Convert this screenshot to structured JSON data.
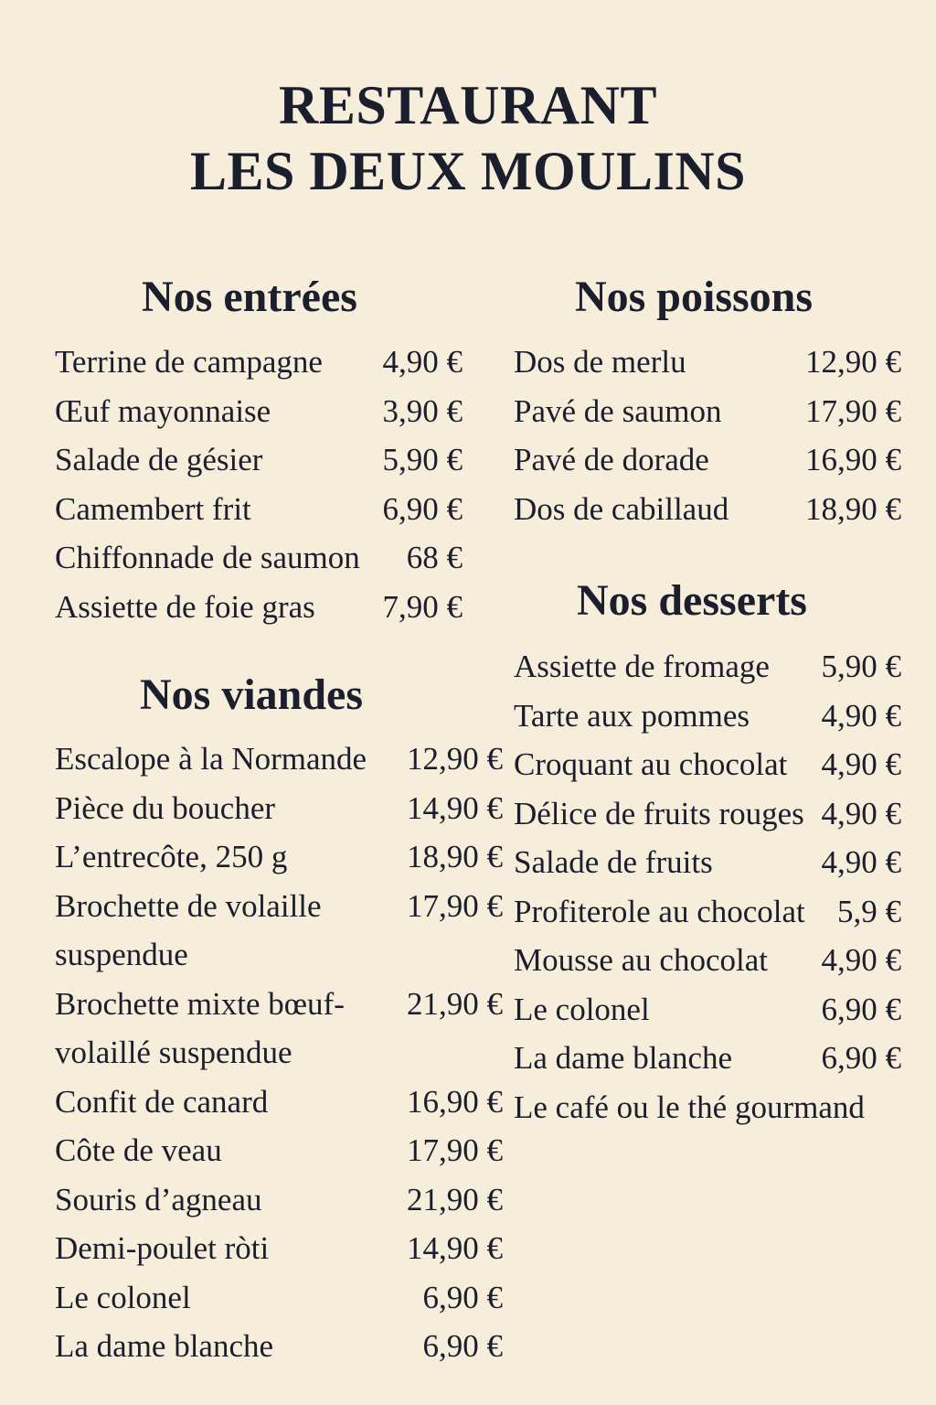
{
  "title": {
    "line1": "RESTAURANT",
    "line2": "LES DEUX MOULINS"
  },
  "sections": {
    "entrees": {
      "heading": "Nos entrées",
      "items": [
        {
          "name": "Terrine de campagne",
          "price": "4,90 €"
        },
        {
          "name": "Œuf mayonnaise",
          "price": "3,90 €"
        },
        {
          "name": "Salade de gésier",
          "price": "5,90 €"
        },
        {
          "name": "Camembert frit",
          "price": "6,90 €"
        },
        {
          "name": "Chiffonnade de saumon",
          "price": "68 €"
        },
        {
          "name": "Assiette de foie gras",
          "price": "7,90 €"
        }
      ]
    },
    "viandes": {
      "heading": "Nos viandes",
      "items": [
        {
          "name": "Escalope à la Normande",
          "price": "12,90 €"
        },
        {
          "name": "Pièce du boucher",
          "price": "14,90 €"
        },
        {
          "name": "L’entrecôte, 250 g",
          "price": "18,90 €"
        },
        {
          "name": "Brochette de volaille\nsuspendue",
          "price": "17,90 €"
        },
        {
          "name": "Brochette mixte bœuf-\nvolaillé suspendue",
          "price": "21,90 €"
        },
        {
          "name": "Confit de canard",
          "price": "16,90 €"
        },
        {
          "name": "Côte de veau",
          "price": "17,90 €"
        },
        {
          "name": "Souris d’agneau",
          "price": "21,90 €"
        },
        {
          "name": "Demi-poulet ròti",
          "price": "14,90 €"
        },
        {
          "name": "Le colonel",
          "price": "6,90 €"
        },
        {
          "name": "La dame blanche",
          "price": "6,90 €"
        }
      ]
    },
    "poissons": {
      "heading": "Nos poissons",
      "items": [
        {
          "name": "Dos de merlu",
          "price": "12,90 €"
        },
        {
          "name": "Pavé de saumon",
          "price": "17,90 €"
        },
        {
          "name": "Pavé de dorade",
          "price": "16,90 €"
        },
        {
          "name": "Dos de cabillaud",
          "price": "18,90 €"
        }
      ]
    },
    "desserts": {
      "heading": "Nos desserts",
      "items": [
        {
          "name": "Assiette de fromage",
          "price": "5,90 €"
        },
        {
          "name": "Tarte aux pommes",
          "price": "4,90 €"
        },
        {
          "name": "Croquant au chocolat",
          "price": "4,90 €"
        },
        {
          "name": "Délice de fruits rouges",
          "price": "4,90 €"
        },
        {
          "name": "Salade de fruits",
          "price": "4,90 €"
        },
        {
          "name": "Profiterole au chocolat",
          "price": "5,9 €"
        },
        {
          "name": "Mousse au chocolat",
          "price": "4,90 €"
        },
        {
          "name": "Le colonel",
          "price": "6,90 €"
        },
        {
          "name": "La dame blanche",
          "price": "6,90 €"
        },
        {
          "name": "Le café ou le thé gourmand",
          "price": ""
        }
      ]
    }
  },
  "colors": {
    "background": "#f6eddb",
    "text": "#1b1e2c"
  }
}
